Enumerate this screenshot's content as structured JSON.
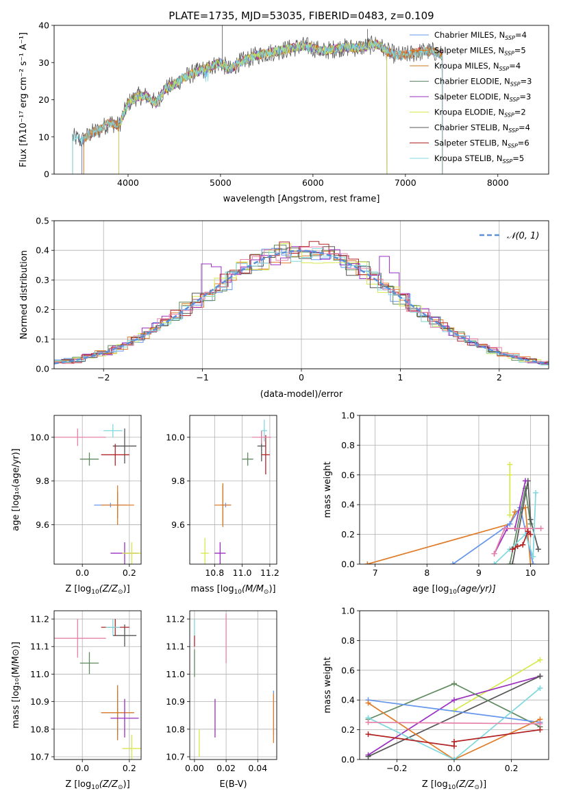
{
  "figure": {
    "title": "PLATE=1735, MJD=53035, FIBERID=0483, z=0.109"
  },
  "colors": {
    "Chabrier MILES": "#6495ED",
    "Salpeter MILES": "#E07B28",
    "Kroupa MILES": "#CC7722",
    "Chabrier ELODIE": "#5F8A5F",
    "Salpeter ELODIE": "#9A2EC0",
    "Kroupa ELODIE": "#D6E84A",
    "Chabrier STELIB": "#555555",
    "Salpeter STELIB": "#B22222",
    "Kroupa STELIB": "#7FD8DE",
    "pink": "#E780A8",
    "gaussian": "#5B8FD8"
  },
  "chart_data": [
    {
      "id": "spectrum",
      "type": "line",
      "title": "PLATE=1735, MJD=53035, FIBERID=0483, z=0.109",
      "xlabel": "wavelength [Angstrom, rest frame]",
      "ylabel": "Flux [fλ10⁻¹⁷ erg cm⁻² s⁻¹ A⁻¹]",
      "xlim": [
        3200,
        8550
      ],
      "ylim": [
        0,
        40
      ],
      "xticks": [
        4000,
        5000,
        6000,
        7000,
        8000
      ],
      "yticks": [
        0,
        10,
        20,
        30,
        40
      ],
      "legend_position": "right",
      "legend": [
        "Chabrier MILES, N_SSP=4",
        "Salpeter MILES, N_SSP=5",
        "Kroupa MILES, N_SSP=4",
        "Chabrier ELODIE, N_SSP=3",
        "Salpeter ELODIE, N_SSP=3",
        "Kroupa ELODIE, N_SSP=2",
        "Chabrier STELIB, N_SSP=4",
        "Salpeter STELIB, N_SSP=6",
        "Kroupa STELIB, N_SSP=5"
      ],
      "legend_display": [
        {
          "pre": "Chabrier MILES, N",
          "sub": "SSP",
          "post": "=4"
        },
        {
          "pre": "Salpeter MILES, N",
          "sub": "SSP",
          "post": "=5"
        },
        {
          "pre": "Kroupa MILES, N",
          "sub": "SSP",
          "post": "=4"
        },
        {
          "pre": "Chabrier ELODIE, N",
          "sub": "SSP",
          "post": "=3"
        },
        {
          "pre": "Salpeter ELODIE, N",
          "sub": "SSP",
          "post": "=3"
        },
        {
          "pre": "Kroupa ELODIE, N",
          "sub": "SSP",
          "post": "=2"
        },
        {
          "pre": "Chabrier STELIB, N",
          "sub": "SSP",
          "post": "=4"
        },
        {
          "pre": "Salpeter STELIB, N",
          "sub": "SSP",
          "post": "=6"
        },
        {
          "pre": "Kroupa STELIB, N",
          "sub": "SSP",
          "post": "=5"
        }
      ],
      "continuum": {
        "x": [
          3400,
          3500,
          3600,
          3700,
          3800,
          3900,
          4000,
          4100,
          4200,
          4300,
          4400,
          4500,
          4600,
          4700,
          4800,
          4900,
          5000,
          5100,
          5200,
          5300,
          5400,
          5500,
          5600,
          5700,
          5800,
          5900,
          6000,
          6100,
          6200,
          6300,
          6400,
          6500,
          6600,
          6700,
          6800,
          6900,
          7000,
          7100,
          7200,
          7300,
          7400
        ],
        "y": [
          10,
          9,
          11,
          12,
          14,
          13,
          19,
          21,
          21,
          19,
          23,
          24,
          26,
          27,
          28,
          29,
          30,
          28,
          30,
          31,
          32,
          32.5,
          33,
          33.5,
          34,
          34.5,
          34,
          33,
          33.5,
          34,
          34,
          34,
          34.5,
          35,
          33,
          32,
          32,
          32.5,
          33,
          33,
          32
        ]
      },
      "series_ranges": [
        {
          "name": "Chabrier MILES",
          "from": 3500,
          "to": 7400
        },
        {
          "name": "Salpeter MILES",
          "from": 3520,
          "to": 7400
        },
        {
          "name": "Kroupa MILES",
          "from": 3520,
          "to": 7400
        },
        {
          "name": "Chabrier ELODIE",
          "from": 3900,
          "to": 6800
        },
        {
          "name": "Salpeter ELODIE",
          "from": 3900,
          "to": 6800
        },
        {
          "name": "Kroupa ELODIE",
          "from": 3900,
          "to": 6800
        },
        {
          "name": "Chabrier STELIB",
          "from": 3400,
          "to": 7400
        },
        {
          "name": "Salpeter STELIB",
          "from": 3500,
          "to": 7400
        },
        {
          "name": "Kroupa STELIB",
          "from": 3400,
          "to": 7400
        }
      ]
    },
    {
      "id": "residuals",
      "type": "histogram",
      "xlabel": "(data-model)/error",
      "ylabel": "Normed distribution",
      "xlim": [
        -2.5,
        2.5
      ],
      "ylim": [
        0,
        0.5
      ],
      "xticks": [
        -2,
        -1,
        0,
        1,
        2
      ],
      "yticks": [
        0.0,
        0.1,
        0.2,
        0.3,
        0.4,
        0.5
      ],
      "legend_position": "upper right",
      "legend": [
        "N(0,1)"
      ],
      "legend_display": "𝒩(0, 1)"
    },
    {
      "id": "age-vs-Z",
      "type": "scatter",
      "xlabel_pre": "Z [log",
      "xlabel_sub": "10",
      "xlabel_post": "(Z/Z",
      "xlabel_sub2": "⊙",
      "xlabel_end": ")]",
      "ylabel": "age  [log₁₀(age/yr)]",
      "xlim": [
        -0.12,
        0.25
      ],
      "ylim": [
        9.42,
        10.1
      ],
      "xticks": [
        0.0,
        0.2
      ],
      "yticks": [
        9.6,
        9.8,
        10.0
      ],
      "points": [
        {
          "series": "Chabrier MILES",
          "x": 0.12,
          "y": 9.69,
          "xerr": 0.07,
          "yerr": 0.01
        },
        {
          "series": "Salpeter MILES",
          "x": 0.15,
          "y": 9.69,
          "xerr": 0.07,
          "yerr": 0.09
        },
        {
          "series": "Kroupa MILES",
          "x": 0.15,
          "y": 9.69,
          "xerr": 0.0,
          "yerr": 0.06
        },
        {
          "series": "Chabrier ELODIE",
          "x": 0.03,
          "y": 9.9,
          "xerr": 0.04,
          "yerr": 0.03
        },
        {
          "series": "Salpeter ELODIE",
          "x": 0.18,
          "y": 9.47,
          "xerr": 0.06,
          "yerr": 0.05
        },
        {
          "series": "Kroupa ELODIE",
          "x": 0.21,
          "y": 9.47,
          "xerr": 0.04,
          "yerr": 0.05
        },
        {
          "series": "Chabrier STELIB",
          "x": 0.18,
          "y": 9.96,
          "xerr": 0.05,
          "yerr": 0.08
        },
        {
          "series": "Salpeter STELIB",
          "x": 0.14,
          "y": 9.92,
          "xerr": 0.06,
          "yerr": 0.05
        },
        {
          "series": "Kroupa STELIB",
          "x": 0.13,
          "y": 10.03,
          "xerr": 0.04,
          "yerr": 0.03
        },
        {
          "series": "pink",
          "x": -0.02,
          "y": 10.0,
          "xerr": 0.12,
          "yerr": 0.04
        }
      ]
    },
    {
      "id": "age-vs-mass",
      "type": "scatter",
      "xlabel_pre": "mass [log",
      "xlabel_sub": "10",
      "xlabel_post": "(M/M",
      "xlabel_sub2": "⊙",
      "xlabel_end": ")]",
      "xlim": [
        10.62,
        11.25
      ],
      "ylim": [
        9.42,
        10.1
      ],
      "xticks": [
        10.8,
        11.0,
        11.2
      ],
      "yticks": [
        9.6,
        9.8,
        10.0
      ],
      "points": [
        {
          "series": "Chabrier MILES",
          "x": 10.88,
          "y": 9.69,
          "xerr": 0.04,
          "yerr": 0.01
        },
        {
          "series": "Salpeter MILES",
          "x": 10.86,
          "y": 9.69,
          "xerr": 0.06,
          "yerr": 0.09
        },
        {
          "series": "Kroupa MILES",
          "x": 10.86,
          "y": 9.69,
          "xerr": 0.0,
          "yerr": 0.1
        },
        {
          "series": "Chabrier ELODIE",
          "x": 11.04,
          "y": 9.9,
          "xerr": 0.04,
          "yerr": 0.03
        },
        {
          "series": "Salpeter ELODIE",
          "x": 10.84,
          "y": 9.47,
          "xerr": 0.04,
          "yerr": 0.05
        },
        {
          "series": "Kroupa ELODIE",
          "x": 10.73,
          "y": 9.47,
          "xerr": 0.03,
          "yerr": 0.07
        },
        {
          "series": "Chabrier STELIB",
          "x": 11.14,
          "y": 9.96,
          "xerr": 0.03,
          "yerr": 0.07
        },
        {
          "series": "Salpeter STELIB",
          "x": 11.17,
          "y": 9.92,
          "xerr": 0.03,
          "yerr": 0.09
        },
        {
          "series": "Kroupa STELIB",
          "x": 11.16,
          "y": 10.03,
          "xerr": 0.02,
          "yerr": 0.05
        },
        {
          "series": "pink",
          "x": 11.14,
          "y": 10.0,
          "xerr": 0.07,
          "yerr": 0.03
        }
      ]
    },
    {
      "id": "massweight-vs-age",
      "type": "line",
      "xlabel_pre": "age  [log",
      "xlabel_sub": "10",
      "xlabel_post": "(age/yr)]",
      "ylabel": "mass weight",
      "xlim": [
        6.7,
        10.35
      ],
      "ylim": [
        0,
        1
      ],
      "xticks": [
        7,
        8,
        9,
        10
      ],
      "yticks": [
        0.0,
        0.2,
        0.4,
        0.6,
        0.8,
        1.0
      ],
      "series": [
        {
          "name": "Salpeter MILES",
          "x": [
            6.85,
            9.6,
            9.7,
            9.9,
            10.0
          ],
          "y": [
            0.0,
            0.27,
            0.35,
            0.38,
            0.0
          ]
        },
        {
          "name": "Chabrier MILES",
          "x": [
            8.5,
            9.6,
            9.8,
            10.05
          ],
          "y": [
            0.0,
            0.27,
            0.38,
            0.0
          ]
        },
        {
          "name": "Kroupa ELODIE",
          "x": [
            9.6,
            9.6,
            9.6
          ],
          "y": [
            0.67,
            0.33,
            0.6
          ]
        },
        {
          "name": "Chabrier ELODIE",
          "x": [
            9.6,
            9.9,
            10.0
          ],
          "y": [
            0.0,
            0.51,
            0.27
          ]
        },
        {
          "name": "Chabrier STELIB",
          "x": [
            9.65,
            9.95,
            10.0,
            10.15
          ],
          "y": [
            0.0,
            0.56,
            0.3,
            0.1
          ]
        },
        {
          "name": "Salpeter ELODIE",
          "x": [
            9.3,
            9.55,
            9.7,
            9.9
          ],
          "y": [
            0.07,
            0.24,
            0.24,
            0.56
          ]
        },
        {
          "name": "pink",
          "x": [
            9.3,
            9.5,
            9.9,
            10.2
          ],
          "y": [
            0.07,
            0.24,
            0.24,
            0.24
          ]
        },
        {
          "name": "Kroupa STELIB",
          "x": [
            9.3,
            9.6,
            9.9,
            10.05,
            10.1
          ],
          "y": [
            0.0,
            0.1,
            0.2,
            0.05,
            0.48
          ]
        },
        {
          "name": "Salpeter STELIB",
          "x": [
            9.65,
            9.75,
            9.85,
            9.95,
            10.0
          ],
          "y": [
            0.1,
            0.12,
            0.13,
            0.22,
            0.2
          ]
        }
      ]
    },
    {
      "id": "mass-vs-Z",
      "type": "scatter",
      "xlabel_pre": "Z [log",
      "xlabel_sub": "10",
      "xlabel_post": "(Z/Z",
      "xlabel_sub2": "⊙",
      "xlabel_end": ")]",
      "ylabel": "mass [log₁₀(M/M⊙)]",
      "xlim": [
        -0.12,
        0.25
      ],
      "ylim": [
        10.69,
        11.23
      ],
      "xticks": [
        0.0,
        0.2
      ],
      "yticks": [
        10.7,
        10.8,
        10.9,
        11.0,
        11.1,
        11.2
      ],
      "points": [
        {
          "series": "Chabrier MILES",
          "x": 0.15,
          "y": 10.86,
          "xerr": 0.07,
          "yerr": 0.08
        },
        {
          "series": "Salpeter MILES",
          "x": 0.15,
          "y": 10.86,
          "xerr": 0.07,
          "yerr": 0.0
        },
        {
          "series": "Kroupa MILES",
          "x": 0.15,
          "y": 10.86,
          "xerr": 0.0,
          "yerr": 0.1
        },
        {
          "series": "Chabrier ELODIE",
          "x": 0.03,
          "y": 11.04,
          "xerr": 0.04,
          "yerr": 0.04
        },
        {
          "series": "Salpeter ELODIE",
          "x": 0.18,
          "y": 10.84,
          "xerr": 0.06,
          "yerr": 0.07
        },
        {
          "series": "Kroupa ELODIE",
          "x": 0.21,
          "y": 10.73,
          "xerr": 0.04,
          "yerr": 0.05
        },
        {
          "series": "Chabrier STELIB",
          "x": 0.18,
          "y": 11.14,
          "xerr": 0.05,
          "yerr": 0.04
        },
        {
          "series": "Salpeter STELIB",
          "x": 0.14,
          "y": 11.17,
          "xerr": 0.06,
          "yerr": 0.03
        },
        {
          "series": "Kroupa STELIB",
          "x": 0.13,
          "y": 11.17,
          "xerr": 0.03,
          "yerr": 0.03
        },
        {
          "series": "pink",
          "x": -0.02,
          "y": 11.13,
          "xerr": 0.12,
          "yerr": 0.07
        }
      ]
    },
    {
      "id": "mass-vs-EBV",
      "type": "scatter",
      "xlabel": "E(B-V)",
      "xlim": [
        -0.003,
        0.052
      ],
      "ylim": [
        10.69,
        11.23
      ],
      "xticks": [
        0.0,
        0.02,
        0.04
      ],
      "yticks": [
        10.7,
        10.8,
        10.9,
        11.0,
        11.1,
        11.2
      ],
      "points": [
        {
          "series": "Chabrier MILES",
          "x": 0.05,
          "y": 10.86,
          "xerr": 0.0,
          "yerr": 0.08
        },
        {
          "series": "Salpeter MILES",
          "x": 0.05,
          "y": 10.84,
          "xerr": 0.0,
          "yerr": 0.09
        },
        {
          "series": "Chabrier ELODIE",
          "x": 0.0,
          "y": 11.04,
          "xerr": 0.0,
          "yerr": 0.05
        },
        {
          "series": "Salpeter ELODIE",
          "x": 0.013,
          "y": 10.84,
          "xerr": 0.0,
          "yerr": 0.07
        },
        {
          "series": "Kroupa ELODIE",
          "x": 0.003,
          "y": 10.75,
          "xerr": 0.0,
          "yerr": 0.05
        },
        {
          "series": "Kroupa STELIB",
          "x": 0.0,
          "y": 11.17,
          "xerr": 0.0,
          "yerr": 0.03
        },
        {
          "series": "Salpeter STELIB",
          "x": 0.0,
          "y": 11.12,
          "xerr": 0.0,
          "yerr": 0.02
        },
        {
          "series": "pink",
          "x": 0.02,
          "y": 11.13,
          "xerr": 0.0,
          "yerr": 0.09
        }
      ]
    },
    {
      "id": "massweight-vs-Z",
      "type": "line",
      "xlabel_pre": "Z [log",
      "xlabel_sub": "10",
      "xlabel_post": "(Z/Z",
      "xlabel_sub2": "⊙",
      "xlabel_end": ")]",
      "ylabel": "mass weight",
      "xlim": [
        -0.33,
        0.33
      ],
      "ylim": [
        0,
        1
      ],
      "xticks": [
        -0.2,
        0.0,
        0.2
      ],
      "yticks": [
        0.0,
        0.2,
        0.4,
        0.6,
        0.8,
        1.0
      ],
      "series": [
        {
          "name": "Kroupa ELODIE",
          "x": [
            0.0,
            0.3
          ],
          "y": [
            0.33,
            0.67
          ]
        },
        {
          "name": "Salpeter ELODIE",
          "x": [
            -0.3,
            0.0,
            0.3
          ],
          "y": [
            0.03,
            0.4,
            0.56
          ]
        },
        {
          "name": "Chabrier STELIB",
          "x": [
            -0.3,
            0.3
          ],
          "y": [
            0.02,
            0.56
          ]
        },
        {
          "name": "Chabrier ELODIE",
          "x": [
            -0.3,
            0.0,
            0.3
          ],
          "y": [
            0.27,
            0.51,
            0.22
          ]
        },
        {
          "name": "Chabrier MILES",
          "x": [
            -0.3,
            0.3
          ],
          "y": [
            0.4,
            0.25
          ]
        },
        {
          "name": "Salpeter MILES",
          "x": [
            -0.3,
            0.0,
            0.3
          ],
          "y": [
            0.38,
            0.0,
            0.27
          ]
        },
        {
          "name": "Kroupa STELIB",
          "x": [
            -0.3,
            0.0,
            0.3
          ],
          "y": [
            0.28,
            0.0,
            0.48
          ]
        },
        {
          "name": "pink",
          "x": [
            -0.3,
            0.3
          ],
          "y": [
            0.25,
            0.24
          ]
        },
        {
          "name": "Salpeter STELIB",
          "x": [
            -0.3,
            0.0,
            0.0,
            0.3
          ],
          "y": [
            0.17,
            0.09,
            0.12,
            0.2
          ]
        }
      ]
    }
  ]
}
